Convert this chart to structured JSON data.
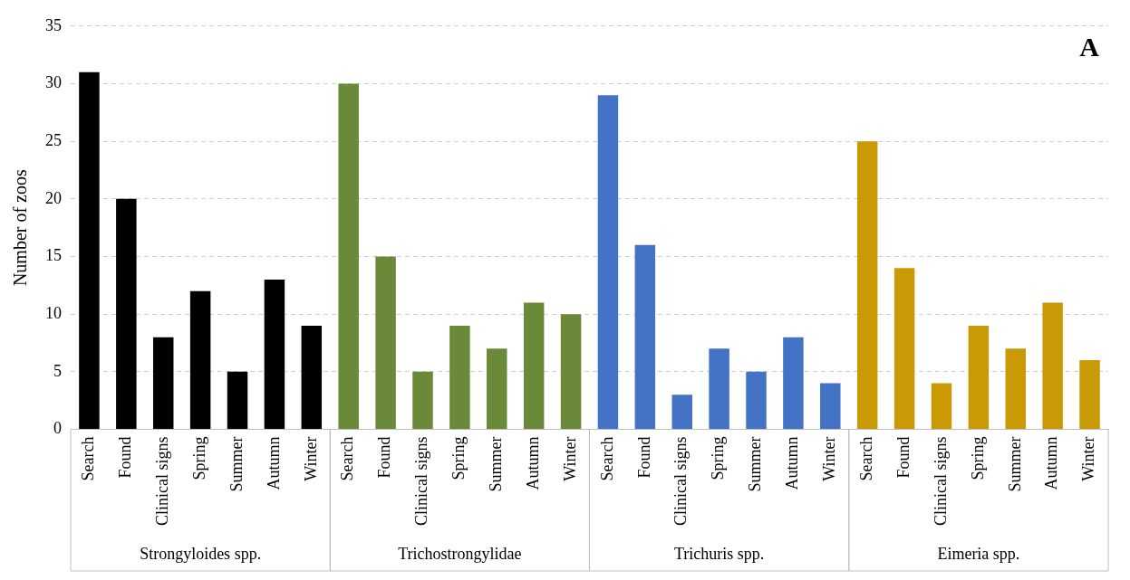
{
  "chart_data": {
    "type": "bar",
    "title": "A",
    "ylabel": "Number of zoos",
    "annotations": [
      "Strongyloides spp.",
      "Trichostrongylidae",
      "Trichuris spp.",
      "Eimeria spp."
    ],
    "categories": [
      "Search",
      "Found",
      "Clinical signs",
      "Spring",
      "Summer",
      "Autumn",
      "Winter",
      "Search",
      "Found",
      "Clinical signs",
      "Spring",
      "Summer",
      "Autumn",
      "Winter",
      "Search",
      "Found",
      "Clinical signs",
      "Spring",
      "Summer",
      "Autumn",
      "Winter",
      "Search",
      "Found",
      "Clinical signs",
      "Spring",
      "Summer",
      "Autumn",
      "Winter"
    ],
    "values": [
      31,
      20,
      8,
      12,
      5,
      13,
      9,
      30,
      15,
      5,
      9,
      7,
      11,
      10,
      29,
      16,
      3,
      7,
      5,
      8,
      4,
      25,
      14,
      4,
      9,
      7,
      11,
      6
    ],
    "colors": [
      "#000000",
      "#000000",
      "#000000",
      "#000000",
      "#000000",
      "#000000",
      "#000000",
      "#6a8a3a",
      "#6a8a3a",
      "#6a8a3a",
      "#6a8a3a",
      "#6a8a3a",
      "#6a8a3a",
      "#6a8a3a",
      "#4472c4",
      "#4472c4",
      "#4472c4",
      "#4472c4",
      "#4472c4",
      "#4472c4",
      "#4472c4",
      "#c99a06",
      "#c99a06",
      "#c99a06",
      "#c99a06",
      "#c99a06",
      "#c99a06",
      "#c99a06"
    ],
    "ylim": [
      0,
      35
    ],
    "yticks": [
      0,
      5,
      10,
      15,
      20,
      25,
      30,
      35
    ],
    "grid": "y",
    "legend": false
  }
}
